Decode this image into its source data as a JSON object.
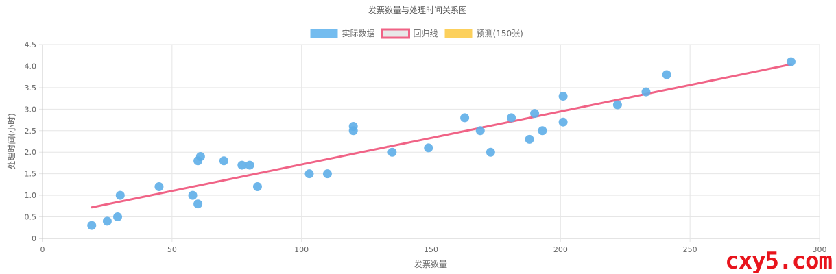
{
  "chart_data": {
    "type": "scatter",
    "title": "发票数量与处理时间关系图",
    "xlabel": "发票数量",
    "ylabel": "处理时间(小时)",
    "xlim": [
      0,
      300
    ],
    "ylim": [
      0,
      4.5
    ],
    "x_ticks": [
      0,
      50,
      100,
      150,
      200,
      250,
      300
    ],
    "y_ticks": [
      "0",
      "0.5",
      "1.0",
      "1.5",
      "2.0",
      "2.5",
      "3.0",
      "3.5",
      "4.0",
      "4.5"
    ],
    "grid": true,
    "legend_position": "top-center",
    "legend": [
      {
        "label": "实际数据",
        "color": "#74bcef",
        "border": "#74bcef"
      },
      {
        "label": "回归线",
        "color": "#e8e8e8",
        "border": "#f06386"
      },
      {
        "label": "预测(150张)",
        "color": "#fcd05c",
        "border": "#fcd05c"
      }
    ],
    "series": [
      {
        "name": "实际数据",
        "color": "#5eaee8",
        "points": [
          {
            "x": 19,
            "y": 0.3
          },
          {
            "x": 25,
            "y": 0.4
          },
          {
            "x": 29,
            "y": 0.5
          },
          {
            "x": 30,
            "y": 1.0
          },
          {
            "x": 45,
            "y": 1.2
          },
          {
            "x": 58,
            "y": 1.0
          },
          {
            "x": 60,
            "y": 1.8
          },
          {
            "x": 60,
            "y": 0.8
          },
          {
            "x": 61,
            "y": 1.9
          },
          {
            "x": 70,
            "y": 1.8
          },
          {
            "x": 77,
            "y": 1.7
          },
          {
            "x": 80,
            "y": 1.7
          },
          {
            "x": 83,
            "y": 1.2
          },
          {
            "x": 103,
            "y": 1.5
          },
          {
            "x": 110,
            "y": 1.5
          },
          {
            "x": 120,
            "y": 2.6
          },
          {
            "x": 120,
            "y": 2.5
          },
          {
            "x": 135,
            "y": 2.0
          },
          {
            "x": 149,
            "y": 2.1
          },
          {
            "x": 163,
            "y": 2.8
          },
          {
            "x": 169,
            "y": 2.5
          },
          {
            "x": 173,
            "y": 2.0
          },
          {
            "x": 181,
            "y": 2.8
          },
          {
            "x": 188,
            "y": 2.3
          },
          {
            "x": 190,
            "y": 2.9
          },
          {
            "x": 193,
            "y": 2.5
          },
          {
            "x": 201,
            "y": 3.3
          },
          {
            "x": 201,
            "y": 2.7
          },
          {
            "x": 222,
            "y": 3.1
          },
          {
            "x": 233,
            "y": 3.4
          },
          {
            "x": 241,
            "y": 3.8
          },
          {
            "x": 289,
            "y": 4.1
          }
        ]
      },
      {
        "name": "回归线",
        "color": "#f06386",
        "points": [
          {
            "x": 19,
            "y": 0.72
          },
          {
            "x": 289,
            "y": 4.04
          }
        ]
      },
      {
        "name": "预测(150张)",
        "color": "#fcd05c",
        "points": []
      }
    ]
  },
  "watermark": "cxy5.com"
}
